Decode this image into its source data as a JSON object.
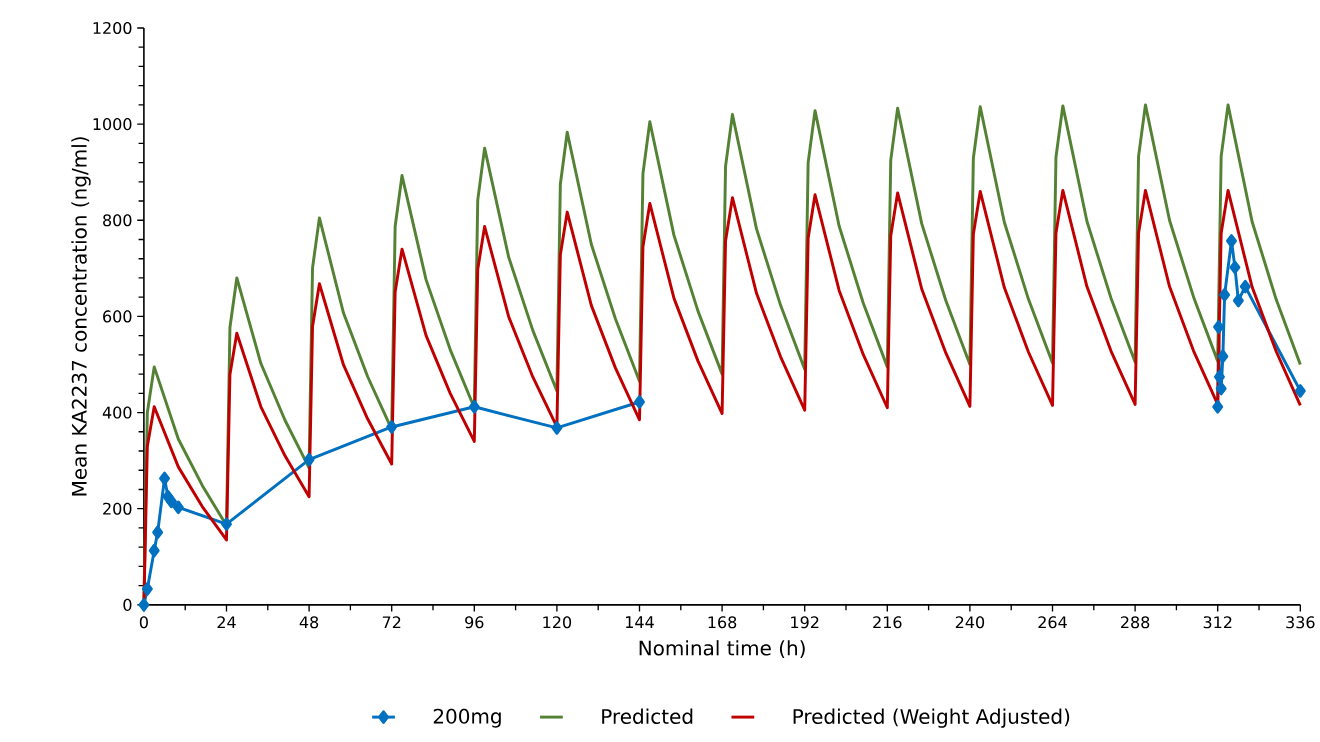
{
  "chart_data": {
    "type": "line",
    "xlabel": "Nominal time (h)",
    "ylabel": "Mean KA2237 concentration (ng/ml)",
    "xlim": [
      0,
      336
    ],
    "xticks": [
      0,
      24,
      48,
      72,
      96,
      120,
      144,
      168,
      192,
      216,
      240,
      264,
      288,
      312,
      336
    ],
    "ylim": [
      0,
      1200
    ],
    "yticks": [
      0,
      200,
      400,
      600,
      800,
      1000,
      1200
    ],
    "grid": false,
    "legend": "bottom",
    "series": [
      {
        "name": "200mg",
        "color": "#0070c0",
        "marker": "diamond",
        "x": [
          0,
          1,
          3,
          4,
          6,
          7,
          8,
          10,
          24,
          48,
          72,
          96,
          120,
          144,
          228,
          312,
          312.25,
          312.5,
          313,
          313.5,
          314,
          316,
          317,
          318,
          320,
          336
        ],
        "values": [
          0,
          33,
          113,
          151,
          263,
          225,
          215,
          203,
          168,
          302,
          370,
          412,
          368,
          422,
          null,
          412,
          578,
          474,
          450,
          517,
          645,
          757,
          702,
          633,
          662,
          445
        ]
      },
      {
        "name": "Predicted",
        "color": "#548235",
        "marker": "none",
        "x": [
          0,
          1,
          3,
          10,
          17,
          24,
          25,
          27,
          34,
          41,
          48,
          49,
          51,
          58,
          65,
          72,
          73,
          75,
          82,
          89,
          96,
          97,
          99,
          106,
          113,
          120,
          121,
          123,
          130,
          137,
          144,
          145,
          147,
          154,
          161,
          168,
          169,
          171,
          178,
          185,
          192,
          193,
          195,
          202,
          209,
          216,
          217,
          219,
          226,
          233,
          240,
          241,
          243,
          250,
          257,
          264,
          265,
          267,
          274,
          281,
          288,
          289,
          291,
          298,
          305,
          312,
          313,
          315,
          322,
          329,
          336
        ],
        "values": [
          0,
          400,
          495,
          345,
          248,
          165,
          577,
          680,
          502,
          384,
          285,
          701,
          805,
          607,
          475,
          365,
          787,
          893,
          676,
          531,
          410,
          842,
          950,
          723,
          571,
          445,
          875,
          983,
          750,
          595,
          465,
          897,
          1005,
          769,
          611,
          480,
          912,
          1020,
          782,
          623,
          490,
          920,
          1028,
          788,
          628,
          495,
          925,
          1033,
          793,
          633,
          500,
          929,
          1036,
          796,
          636,
          503,
          931,
          1038,
          798,
          638,
          505,
          933,
          1040,
          800,
          640,
          507,
          933,
          1040,
          797,
          635,
          500
        ]
      },
      {
        "name": "Predicted (Weight Adjusted)",
        "color": "#c00000",
        "marker": "none",
        "x": [
          0,
          1,
          3,
          10,
          17,
          24,
          25,
          27,
          34,
          41,
          48,
          49,
          51,
          58,
          65,
          72,
          73,
          75,
          82,
          89,
          96,
          97,
          99,
          106,
          113,
          120,
          121,
          123,
          130,
          137,
          144,
          145,
          147,
          154,
          161,
          168,
          169,
          171,
          178,
          185,
          192,
          193,
          195,
          202,
          209,
          216,
          217,
          219,
          226,
          233,
          240,
          241,
          243,
          250,
          257,
          264,
          265,
          267,
          274,
          281,
          288,
          289,
          291,
          298,
          305,
          312,
          313,
          315,
          322,
          329,
          336
        ],
        "values": [
          0,
          330,
          412,
          287,
          204,
          135,
          479,
          565,
          412,
          310,
          225,
          579,
          668,
          499,
          387,
          293,
          651,
          740,
          560,
          440,
          340,
          698,
          787,
          599,
          474,
          370,
          728,
          817,
          623,
          493,
          385,
          745,
          835,
          638,
          507,
          398,
          757,
          847,
          648,
          516,
          405,
          763,
          853,
          654,
          521,
          410,
          768,
          857,
          657,
          524,
          413,
          771,
          860,
          660,
          526,
          415,
          773,
          862,
          662,
          528,
          417,
          773,
          862,
          662,
          528,
          417,
          773,
          862,
          661,
          527,
          415
        ]
      }
    ]
  }
}
